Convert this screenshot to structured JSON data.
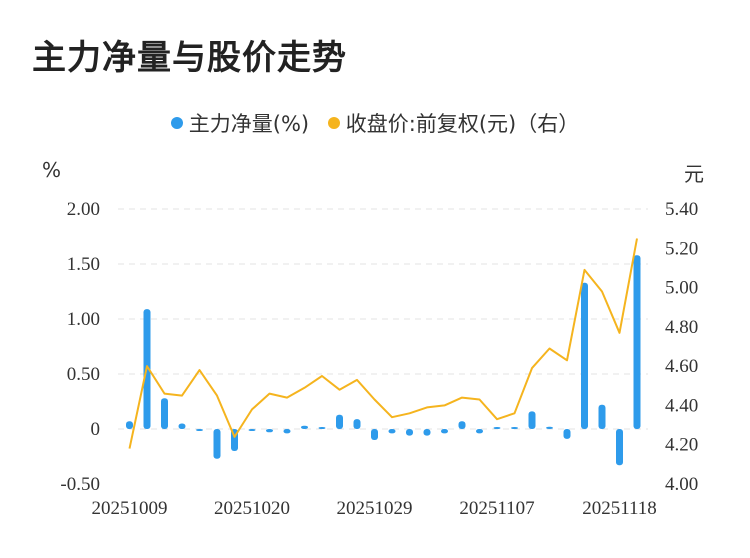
{
  "title": "主力净量与股价走势",
  "legend": [
    {
      "label": "主力净量(%)",
      "color": "#2E9BEB"
    },
    {
      "label": "收盘价:前复权(元)（右）",
      "color": "#F5B41E"
    }
  ],
  "chart_data": {
    "type": "bar+line",
    "title": "主力净量与股价走势",
    "left_axis": {
      "label": "%",
      "ticks": [
        "2.00",
        "1.50",
        "1.00",
        "0.50",
        "0",
        "-0.50"
      ],
      "ylim": [
        -0.5,
        2.0
      ]
    },
    "right_axis": {
      "label": "元",
      "ticks": [
        "5.40",
        "5.20",
        "5.00",
        "4.80",
        "4.60",
        "4.40",
        "4.20",
        "4.00"
      ],
      "ylim": [
        4.0,
        5.4
      ]
    },
    "x_tick_labels": [
      "20251009",
      "20251020",
      "20251029",
      "20251107",
      "20251118"
    ],
    "x_tick_index": [
      0,
      7,
      14,
      21,
      28
    ],
    "series": [
      {
        "name": "主力净量(%)",
        "kind": "bar",
        "axis": "left",
        "color": "#2E9BEB",
        "values": [
          0.07,
          1.09,
          0.28,
          0.05,
          -0.01,
          -0.27,
          -0.2,
          -0.01,
          -0.03,
          -0.04,
          0.03,
          0.0,
          0.13,
          0.09,
          -0.1,
          -0.04,
          -0.06,
          -0.06,
          -0.04,
          0.07,
          -0.04,
          0.01,
          0.0,
          0.16,
          0.02,
          -0.09,
          1.33,
          0.22,
          -0.33,
          1.58
        ]
      },
      {
        "name": "收盘价:前复权(元)（右）",
        "kind": "line",
        "axis": "right",
        "color": "#F5B41E",
        "values": [
          4.18,
          4.6,
          4.46,
          4.45,
          4.58,
          4.45,
          4.24,
          4.38,
          4.46,
          4.44,
          4.49,
          4.55,
          4.48,
          4.53,
          4.43,
          4.34,
          4.36,
          4.39,
          4.4,
          4.44,
          4.43,
          4.33,
          4.36,
          4.59,
          4.69,
          4.63,
          5.09,
          4.98,
          4.77,
          5.25
        ]
      }
    ],
    "grid": true,
    "legend_position": "top-center"
  }
}
